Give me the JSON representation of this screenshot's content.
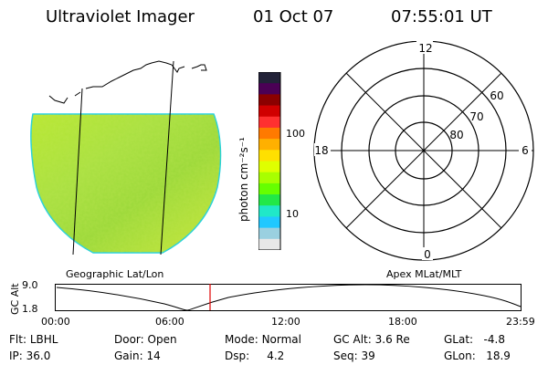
{
  "header": {
    "title": "Ultraviolet Imager",
    "date": "01 Oct 07",
    "time": "07:55:01 UT"
  },
  "colorbar": {
    "unit_label": "photon cm⁻²s⁻¹",
    "ticks": [
      "100",
      "10"
    ],
    "colors": [
      "#222238",
      "#4b0055",
      "#8b0000",
      "#d00000",
      "#ff3030",
      "#ff7a00",
      "#ffb000",
      "#ffe000",
      "#dfff00",
      "#a8ff00",
      "#66ff00",
      "#22e848",
      "#20e8c8",
      "#20c8ff",
      "#9ad0e0",
      "#e8e8e8"
    ]
  },
  "polar": {
    "mlt_labels": [
      "12",
      "18",
      "6",
      "0"
    ],
    "lat_labels": [
      "60",
      "70",
      "80"
    ]
  },
  "map_labels": {
    "left": "Geographic Lat/Lon",
    "right": "Apex MLat/MLT"
  },
  "altitude_plot": {
    "y_axis_label": "GC Alt",
    "y_ticks": [
      "9.0",
      "1.8"
    ],
    "x_ticks": [
      "00:00",
      "06:00",
      "12:00",
      "18:00",
      "23:59"
    ],
    "current_time_marker_color": "#e00000"
  },
  "info_rows": [
    [
      {
        "label": "Flt:",
        "value": "LBHL"
      },
      {
        "label": "Door:",
        "value": "Open"
      },
      {
        "label": "Mode:",
        "value": "Normal"
      },
      {
        "label": "GC Alt:",
        "value": "3.6 Re"
      },
      {
        "label": "GLat:",
        "value": "-4.8"
      }
    ],
    [
      {
        "label": "IP:",
        "value": "36.0"
      },
      {
        "label": "Gain:",
        "value": "14"
      },
      {
        "label": "Dsp:",
        "value": "4.2"
      },
      {
        "label": "Seq:",
        "value": "39"
      },
      {
        "label": "GLon:",
        "value": "18.9"
      }
    ]
  ]
}
